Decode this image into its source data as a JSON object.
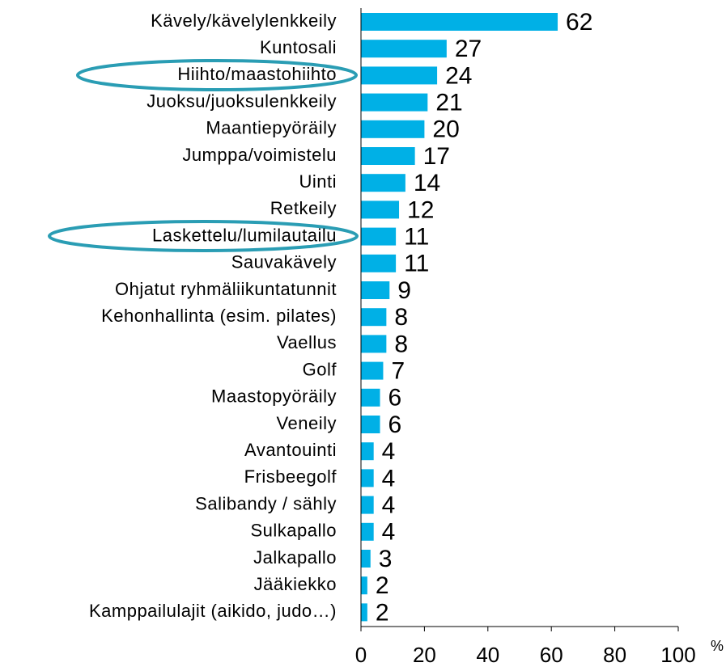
{
  "chart_data": {
    "type": "bar",
    "orientation": "horizontal",
    "categories": [
      "Kävely/kävelylenkkeily",
      "Kuntosali",
      "Hiihto/maastohiihto",
      "Juoksu/juoksulenkkeily",
      "Maantiepyöräily",
      "Jumppa/voimistelu",
      "Uinti",
      "Retkeily",
      "Laskettelu/lumilautailu",
      "Sauvakävely",
      "Ohjatut ryhmäliikuntatunnit",
      "Kehonhallinta (esim. pilates)",
      "Vaellus",
      "Golf",
      "Maastopyöräily",
      "Veneily",
      "Avantouinti",
      "Frisbeegolf",
      "Salibandy / sähly",
      "Sulkapallo",
      "Jalkapallo",
      "Jääkiekko",
      "Kamppailulajit (aikido, judo…)"
    ],
    "values": [
      62,
      27,
      24,
      21,
      20,
      17,
      14,
      12,
      11,
      11,
      9,
      8,
      8,
      7,
      6,
      6,
      4,
      4,
      4,
      4,
      3,
      2,
      2
    ],
    "color": "#00b0e6",
    "xlim": [
      0,
      100
    ],
    "xticks": [
      0,
      20,
      40,
      60,
      80,
      100
    ],
    "x_label": "%"
  }
}
